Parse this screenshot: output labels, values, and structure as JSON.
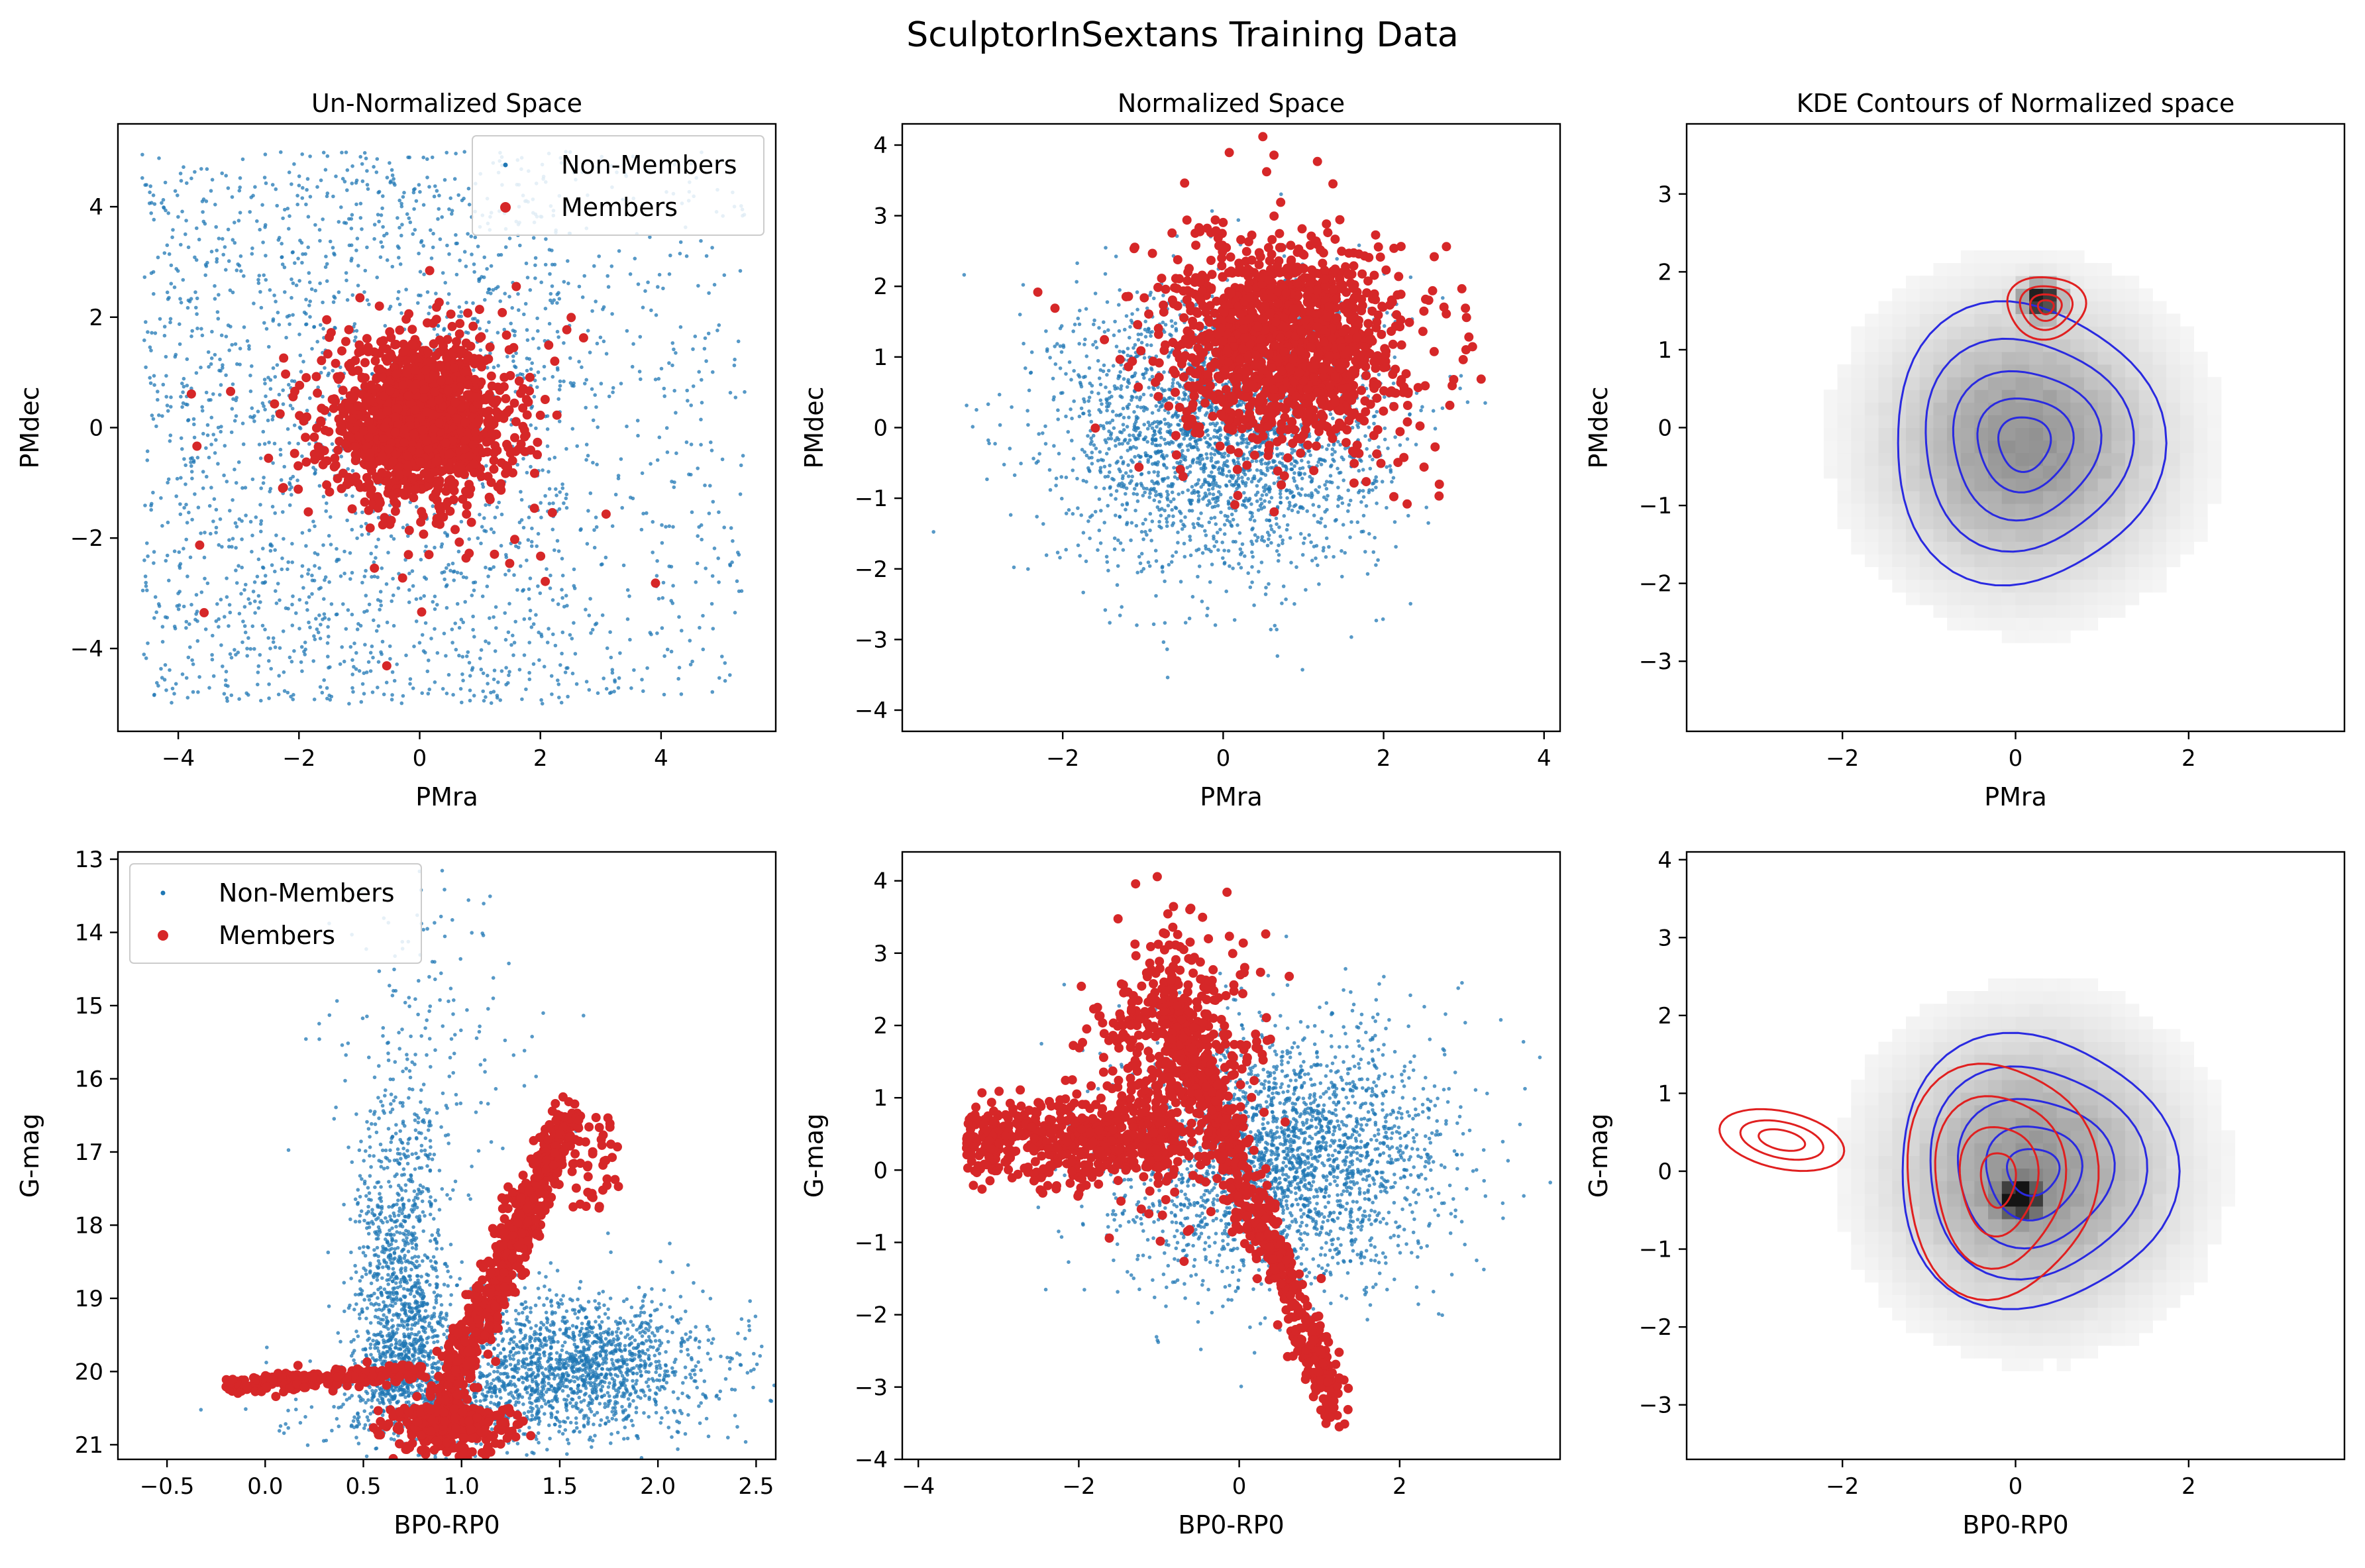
{
  "figure": {
    "suptitle": "SculptorInSextans Training Data"
  },
  "colors": {
    "non_members": "#1f77b4",
    "members": "#d62728",
    "kde_all": "#2a2ae0",
    "kde_members": "#e02020",
    "background": "#ffffff"
  },
  "chart_data": [
    {
      "id": "p1",
      "type": "scatter",
      "title": "Un-Normalized Space",
      "xlabel": "PMra",
      "ylabel": "PMdec",
      "xlim": [
        -5.0,
        5.9
      ],
      "ylim": [
        -5.5,
        5.5
      ],
      "xticks": [
        -4,
        -2,
        0,
        2,
        4
      ],
      "yticks": [
        -4,
        -2,
        0,
        2,
        4
      ],
      "yinvert": false,
      "legend": "top-right",
      "series": [
        {
          "name": "Non-Members",
          "kind": "uniform-box",
          "xrange": [
            -4.6,
            5.4
          ],
          "yrange": [
            -5.0,
            5.0
          ],
          "color": "#1f77b4"
        },
        {
          "name": "Members",
          "kind": "cluster",
          "center": [
            0.0,
            0.1
          ],
          "spread": [
            0.75,
            0.7
          ],
          "extent": [
            -4.0,
            4.3,
            -3.5,
            2.9
          ],
          "color": "#d62728"
        }
      ]
    },
    {
      "id": "p2",
      "type": "scatter",
      "title": "Normalized Space",
      "xlabel": "PMra",
      "ylabel": "PMdec",
      "xlim": [
        -4.0,
        4.2
      ],
      "ylim": [
        -4.3,
        4.3
      ],
      "xticks": [
        -2,
        0,
        2,
        4
      ],
      "yticks": [
        -4,
        -3,
        -2,
        -1,
        0,
        1,
        2,
        3,
        4
      ],
      "yinvert": false,
      "legend": "none",
      "series": [
        {
          "name": "",
          "kind": "gaussian",
          "center": [
            0.0,
            0.0
          ],
          "spread": [
            1.0,
            1.0
          ],
          "color": "#1f77b4"
        },
        {
          "name": "",
          "kind": "cluster",
          "center": [
            0.8,
            1.2
          ],
          "spread": [
            0.7,
            0.7
          ],
          "extent": [
            -1.5,
            3.5,
            -1.3,
            2.9
          ],
          "color": "#d62728"
        }
      ]
    },
    {
      "id": "p3",
      "type": "heatmap",
      "title": "KDE Contours of Normalized space",
      "xlabel": "PMra",
      "ylabel": "PMdec",
      "xlim": [
        -3.8,
        3.8
      ],
      "ylim": [
        -3.9,
        3.9
      ],
      "xticks": [
        -2,
        0,
        2
      ],
      "yticks": [
        -3,
        -2,
        -1,
        0,
        1,
        2,
        3
      ],
      "yinvert": false,
      "legend": "none",
      "density_peak": [
        0.3,
        1.65
      ],
      "contours_all": {
        "center": [
          0.1,
          -0.2
        ],
        "radii": [
          [
            1.55,
            1.8
          ],
          [
            1.2,
            1.35
          ],
          [
            0.85,
            0.95
          ],
          [
            0.55,
            0.6
          ],
          [
            0.3,
            0.35
          ]
        ],
        "color": "#2a2ae0"
      },
      "contours_members": {
        "center": [
          0.35,
          1.55
        ],
        "radii": [
          [
            0.45,
            0.4
          ],
          [
            0.3,
            0.28
          ],
          [
            0.18,
            0.17
          ],
          [
            0.09,
            0.09
          ]
        ],
        "color": "#e02020"
      }
    },
    {
      "id": "p4",
      "type": "scatter",
      "title": "",
      "xlabel": "BP0-RP0",
      "ylabel": "G-mag",
      "xlim": [
        -0.75,
        2.6
      ],
      "ylim": [
        12.9,
        21.2
      ],
      "xticks": [
        -0.5,
        0.0,
        0.5,
        1.0,
        1.5,
        2.0,
        2.5
      ],
      "yticks": [
        13,
        14,
        15,
        16,
        17,
        18,
        19,
        20,
        21
      ],
      "yinvert": true,
      "legend": "top-left",
      "series": [
        {
          "name": "Non-Members",
          "kind": "cmd-field",
          "color": "#1f77b4"
        },
        {
          "name": "Members",
          "kind": "cmd-members",
          "color": "#d62728"
        }
      ]
    },
    {
      "id": "p5",
      "type": "scatter",
      "title": "",
      "xlabel": "BP0-RP0",
      "ylabel": "G-mag",
      "xlim": [
        -4.2,
        4.0
      ],
      "ylim": [
        -4.0,
        4.4
      ],
      "xticks": [
        -4,
        -2,
        0,
        2
      ],
      "yticks": [
        -4,
        -3,
        -2,
        -1,
        0,
        1,
        2,
        3,
        4
      ],
      "yinvert": false,
      "legend": "none",
      "series": [
        {
          "name": "",
          "kind": "gaussian",
          "center": [
            0.5,
            0.2
          ],
          "spread": [
            1.0,
            0.9
          ],
          "color": "#1f77b4"
        },
        {
          "name": "",
          "kind": "norm-cmd-members",
          "color": "#d62728"
        }
      ]
    },
    {
      "id": "p6",
      "type": "heatmap",
      "title": "",
      "xlabel": "BP0-RP0",
      "ylabel": "G-mag",
      "xlim": [
        -3.8,
        3.8
      ],
      "ylim": [
        -3.7,
        4.1
      ],
      "xticks": [
        -2,
        0,
        2
      ],
      "yticks": [
        -3,
        -2,
        -1,
        0,
        1,
        2,
        3,
        4
      ],
      "yinvert": false,
      "legend": "none",
      "density_peak": [
        0.05,
        -0.35
      ],
      "contours_all": {
        "center": [
          0.2,
          0.0
        ],
        "radii": [
          [
            1.6,
            1.75
          ],
          [
            1.25,
            1.35
          ],
          [
            0.9,
            0.95
          ],
          [
            0.55,
            0.6
          ],
          [
            0.3,
            0.3
          ]
        ],
        "color": "#2a2ae0"
      },
      "contours_members": {
        "center": [
          -0.2,
          -0.1
        ],
        "radii": [
          [
            1.1,
            1.5
          ],
          [
            0.75,
            1.1
          ],
          [
            0.45,
            0.7
          ],
          [
            0.2,
            0.35
          ]
        ],
        "color": "#e02020",
        "lobe": [
          -2.7,
          0.4
        ]
      }
    }
  ]
}
